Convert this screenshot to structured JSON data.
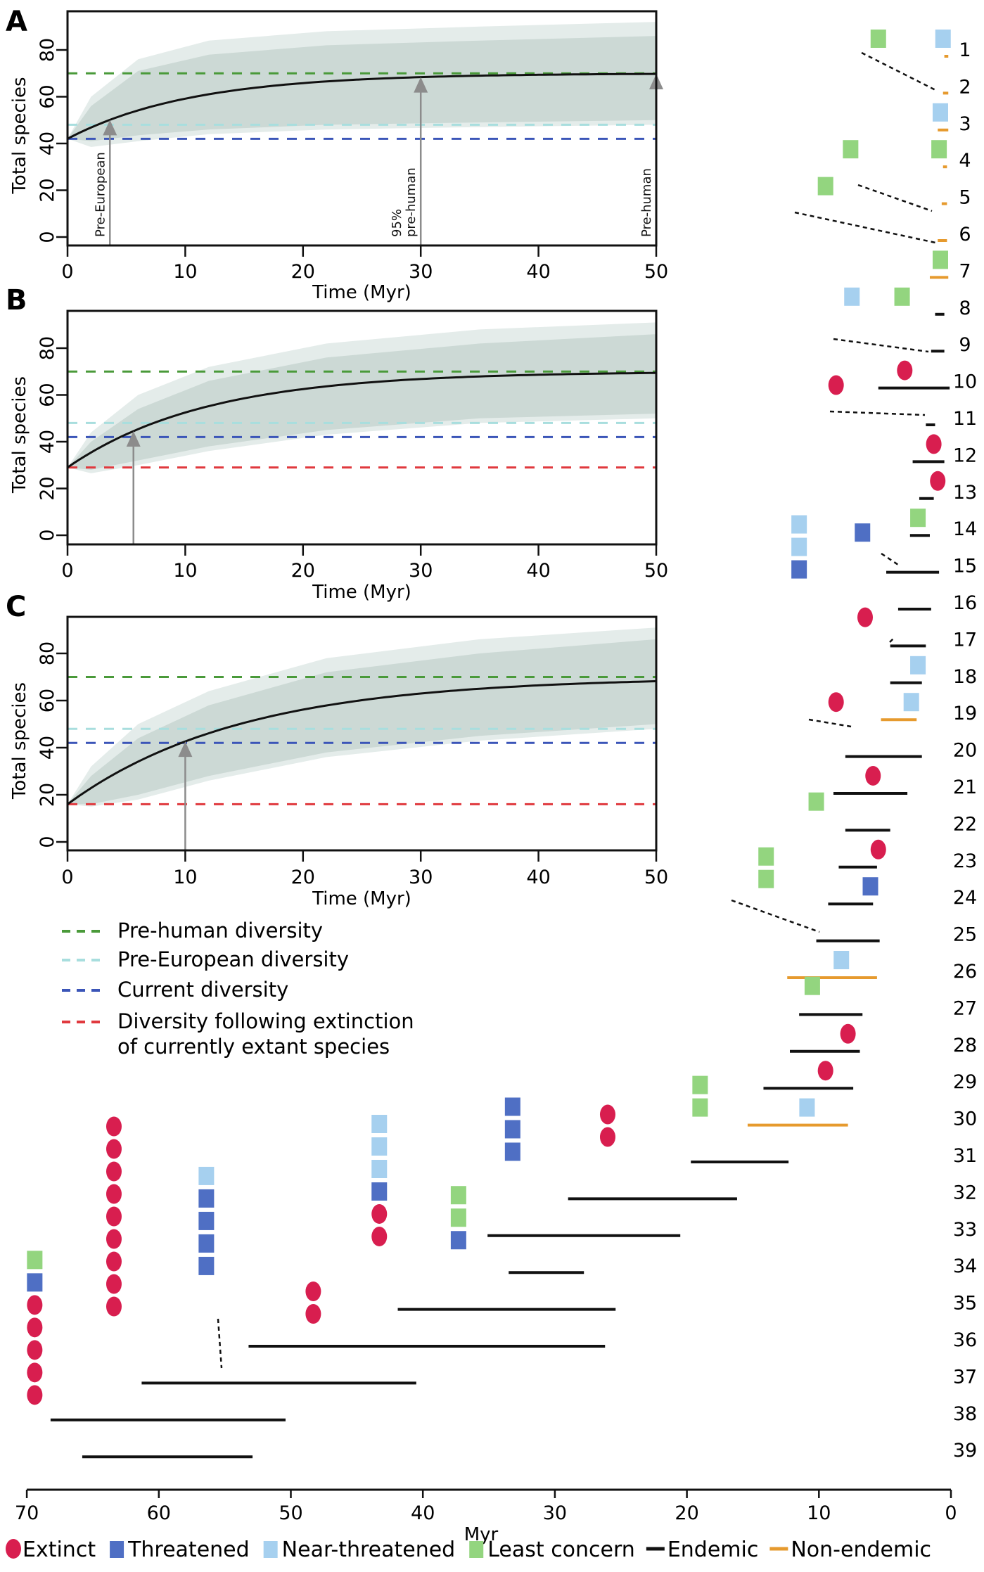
{
  "chart_data": [
    {
      "type": "line",
      "panel": "A",
      "xlabel": "Time (Myr)",
      "ylabel": "Total species",
      "xlim": [
        0,
        50
      ],
      "ylim": [
        -4,
        96
      ],
      "xticks": [
        0,
        10,
        20,
        30,
        40,
        50
      ],
      "yticks": [
        0,
        20,
        40,
        60,
        80
      ],
      "start": 42,
      "asymptote": 70,
      "rate": 0.095,
      "band_inner": {
        "low": [
          42,
          41,
          43.5,
          46,
          48,
          49,
          50
        ],
        "high": [
          42,
          56,
          71,
          78,
          82,
          84,
          86
        ],
        "x": [
          0,
          2,
          6,
          12,
          22,
          35,
          50
        ]
      },
      "band_outer": {
        "low": [
          42,
          38.5,
          41,
          44,
          46,
          47,
          48
        ],
        "high": [
          42,
          60,
          76,
          84,
          88,
          90,
          92
        ],
        "x": [
          0,
          2,
          6,
          12,
          22,
          35,
          50
        ]
      },
      "hlines": [
        {
          "name": "Pre-human diversity",
          "value": 70,
          "color": "#4a9a3a"
        },
        {
          "name": "Pre-European diversity",
          "value": 48,
          "color": "#a8dede"
        },
        {
          "name": "Current diversity",
          "value": 42,
          "color": "#3b55b8"
        }
      ],
      "arrows": [
        {
          "x": 3.6,
          "label": "Pre-European"
        },
        {
          "x": 30,
          "label": "95%\npre-human"
        },
        {
          "x": 50,
          "label": "Pre-human"
        }
      ]
    },
    {
      "type": "line",
      "panel": "B",
      "xlabel": "Time (Myr)",
      "ylabel": "Total species",
      "xlim": [
        0,
        50
      ],
      "ylim": [
        -4,
        96
      ],
      "xticks": [
        0,
        10,
        20,
        30,
        40,
        50
      ],
      "yticks": [
        0,
        20,
        40,
        60,
        80
      ],
      "start": 29,
      "asymptote": 70,
      "rate": 0.085,
      "band_inner": {
        "low": [
          29,
          28,
          32,
          38,
          45,
          50,
          52
        ],
        "high": [
          29,
          40,
          54,
          66,
          76,
          82,
          86
        ],
        "x": [
          0,
          2,
          6,
          12,
          22,
          35,
          50
        ]
      },
      "band_outer": {
        "low": [
          29,
          26.5,
          30,
          36,
          43,
          48,
          50
        ],
        "high": [
          29,
          44,
          60,
          72,
          82,
          88,
          91
        ],
        "x": [
          0,
          2,
          6,
          12,
          22,
          35,
          50
        ]
      },
      "hlines": [
        {
          "name": "Pre-human diversity",
          "value": 70,
          "color": "#4a9a3a"
        },
        {
          "name": "Pre-European diversity",
          "value": 48,
          "color": "#a8dede"
        },
        {
          "name": "Current diversity",
          "value": 42,
          "color": "#3b55b8"
        },
        {
          "name": "Diversity following extinction of currently extant species",
          "value": 29,
          "color": "#e0393e"
        }
      ],
      "arrows": [
        {
          "x": 5.6,
          "label": ""
        }
      ]
    },
    {
      "type": "line",
      "panel": "C",
      "xlabel": "Time (Myr)",
      "ylabel": "Total species",
      "xlim": [
        0,
        50
      ],
      "ylim": [
        -4,
        96
      ],
      "xticks": [
        0,
        10,
        20,
        30,
        40,
        50
      ],
      "yticks": [
        0,
        20,
        40,
        60,
        80
      ],
      "start": 16,
      "asymptote": 70,
      "rate": 0.068,
      "band_inner": {
        "low": [
          16,
          16,
          20,
          28,
          38,
          45,
          50
        ],
        "high": [
          16,
          28,
          44,
          58,
          72,
          80,
          86
        ],
        "x": [
          0,
          2,
          6,
          12,
          22,
          35,
          50
        ]
      },
      "band_outer": {
        "low": [
          16,
          15,
          18,
          26,
          36,
          43,
          48
        ],
        "high": [
          16,
          32,
          50,
          64,
          78,
          86,
          91
        ],
        "x": [
          0,
          2,
          6,
          12,
          22,
          35,
          50
        ]
      },
      "hlines": [
        {
          "name": "Pre-human diversity",
          "value": 70,
          "color": "#4a9a3a"
        },
        {
          "name": "Pre-European diversity",
          "value": 48,
          "color": "#a8dede"
        },
        {
          "name": "Current diversity",
          "value": 42,
          "color": "#3b55b8"
        },
        {
          "name": "Diversity following extinction of currently extant species",
          "value": 16,
          "color": "#e0393e"
        }
      ],
      "arrows": [
        {
          "x": 10,
          "label": ""
        }
      ]
    },
    {
      "type": "tree",
      "xlabel": "Myr",
      "xlim": [
        70,
        0
      ],
      "xticks": [
        70,
        60,
        50,
        40,
        30,
        20,
        10,
        0
      ],
      "rows": [
        {
          "n": "1",
          "start": 0.5,
          "end": 0.2,
          "endemic": false
        },
        {
          "n": "2",
          "start": 0.6,
          "end": 0.2,
          "endemic": false
        },
        {
          "n": "3",
          "start": 1.0,
          "end": 0.2,
          "endemic": false
        },
        {
          "n": "4",
          "start": 0.6,
          "end": 0.3,
          "endemic": false
        },
        {
          "n": "5",
          "start": 0.7,
          "end": 0.3,
          "endemic": false
        },
        {
          "n": "6",
          "start": 1.0,
          "end": 0.3,
          "endemic": false
        },
        {
          "n": "7",
          "start": 1.6,
          "end": 0.2,
          "endemic": false
        },
        {
          "n": "8",
          "start": 1.2,
          "end": 0.5,
          "endemic": true
        },
        {
          "n": "9",
          "start": 1.5,
          "end": 0.5,
          "endemic": true
        },
        {
          "n": "10",
          "start": 5.5,
          "end": 0.1,
          "endemic": true
        },
        {
          "n": "11",
          "start": 1.9,
          "end": 1.2,
          "endemic": true
        },
        {
          "n": "12",
          "start": 2.9,
          "end": 0.5,
          "endemic": true
        },
        {
          "n": "13",
          "start": 2.4,
          "end": 1.3,
          "endemic": true
        },
        {
          "n": "14",
          "start": 3.1,
          "end": 1.6,
          "endemic": true
        },
        {
          "n": "15",
          "start": 4.9,
          "end": 0.9,
          "endemic": true
        },
        {
          "n": "16",
          "start": 4.0,
          "end": 1.5,
          "endemic": true
        },
        {
          "n": "17",
          "start": 4.6,
          "end": 1.9,
          "endemic": true
        },
        {
          "n": "18",
          "start": 4.6,
          "end": 2.2,
          "endemic": true
        },
        {
          "n": "19",
          "start": 5.3,
          "end": 2.6,
          "endemic": false
        },
        {
          "n": "20",
          "start": 8.0,
          "end": 2.2,
          "endemic": true
        },
        {
          "n": "21",
          "start": 8.9,
          "end": 3.3,
          "endemic": true
        },
        {
          "n": "22",
          "start": 8.0,
          "end": 4.6,
          "endemic": true
        },
        {
          "n": "23",
          "start": 8.5,
          "end": 5.6,
          "endemic": true
        },
        {
          "n": "24",
          "start": 9.3,
          "end": 5.9,
          "endemic": true
        },
        {
          "n": "25",
          "start": 10.2,
          "end": 5.4,
          "endemic": true
        },
        {
          "n": "26",
          "start": 12.4,
          "end": 5.6,
          "endemic": false
        },
        {
          "n": "27",
          "start": 11.5,
          "end": 6.7,
          "endemic": true
        },
        {
          "n": "28",
          "start": 12.2,
          "end": 6.9,
          "endemic": true
        },
        {
          "n": "29",
          "start": 14.2,
          "end": 7.4,
          "endemic": true
        },
        {
          "n": "30",
          "start": 15.4,
          "end": 7.8,
          "endemic": false
        },
        {
          "n": "31",
          "start": 19.7,
          "end": 12.3,
          "endemic": true
        },
        {
          "n": "32",
          "start": 29.0,
          "end": 16.2,
          "endemic": true
        },
        {
          "n": "33",
          "start": 35.1,
          "end": 20.5,
          "endemic": true
        },
        {
          "n": "34",
          "start": 33.5,
          "end": 27.8,
          "endemic": true
        },
        {
          "n": "35",
          "start": 41.9,
          "end": 25.4,
          "endemic": true
        },
        {
          "n": "36",
          "start": 53.2,
          "end": 26.2,
          "endemic": true
        },
        {
          "n": "37",
          "start": 61.3,
          "end": 40.5,
          "endemic": true
        },
        {
          "n": "38",
          "start": 68.2,
          "end": 50.4,
          "endemic": true
        },
        {
          "n": "39",
          "start": 65.8,
          "end": 52.9,
          "endemic": true
        }
      ],
      "marker_groups": [
        {
          "myr": 0.6,
          "row": 1,
          "statuses": [
            "near-threatened"
          ]
        },
        {
          "myr": 5.5,
          "row": 1,
          "statuses": [
            "least-concern"
          ]
        },
        {
          "myr": 0.8,
          "row": 3,
          "statuses": [
            "near-threatened"
          ]
        },
        {
          "myr": 0.9,
          "row": 4,
          "statuses": [
            "least-concern"
          ]
        },
        {
          "myr": 7.6,
          "row": 4,
          "statuses": [
            "least-concern"
          ]
        },
        {
          "myr": 9.5,
          "row": 5,
          "statuses": [
            "least-concern"
          ]
        },
        {
          "myr": 0.8,
          "row": 7,
          "statuses": [
            "least-concern"
          ]
        },
        {
          "myr": 3.7,
          "row": 8,
          "statuses": [
            "least-concern"
          ]
        },
        {
          "myr": 7.5,
          "row": 8,
          "statuses": [
            "near-threatened"
          ]
        },
        {
          "myr": 3.5,
          "row": 10,
          "statuses": [
            "extinct"
          ]
        },
        {
          "myr": 8.7,
          "row": 10.4,
          "statuses": [
            "extinct"
          ]
        },
        {
          "myr": 1.3,
          "row": 12,
          "statuses": [
            "extinct"
          ]
        },
        {
          "myr": 1.0,
          "row": 13,
          "statuses": [
            "extinct"
          ]
        },
        {
          "myr": 2.5,
          "row": 14,
          "statuses": [
            "least-concern"
          ]
        },
        {
          "myr": 6.7,
          "row": 14.4,
          "statuses": [
            "threatened"
          ]
        },
        {
          "myr": 11.5,
          "row": 15.4,
          "statuses": [
            "near-threatened",
            "near-threatened",
            "threatened"
          ]
        },
        {
          "myr": 6.5,
          "row": 16.7,
          "statuses": [
            "extinct"
          ]
        },
        {
          "myr": 2.5,
          "row": 18,
          "statuses": [
            "near-threatened"
          ]
        },
        {
          "myr": 3.0,
          "row": 19,
          "statuses": [
            "near-threatened"
          ]
        },
        {
          "myr": 8.7,
          "row": 19,
          "statuses": [
            "extinct"
          ]
        },
        {
          "myr": 5.9,
          "row": 21,
          "statuses": [
            "extinct"
          ]
        },
        {
          "myr": 10.2,
          "row": 21.7,
          "statuses": [
            "least-concern"
          ]
        },
        {
          "myr": 5.5,
          "row": 23,
          "statuses": [
            "extinct"
          ]
        },
        {
          "myr": 6.1,
          "row": 24,
          "statuses": [
            "threatened"
          ]
        },
        {
          "myr": 14.0,
          "row": 23.8,
          "statuses": [
            "least-concern",
            "least-concern"
          ]
        },
        {
          "myr": 8.3,
          "row": 26,
          "statuses": [
            "near-threatened"
          ]
        },
        {
          "myr": 10.5,
          "row": 26.7,
          "statuses": [
            "least-concern"
          ]
        },
        {
          "myr": 7.8,
          "row": 28,
          "statuses": [
            "extinct"
          ]
        },
        {
          "myr": 9.5,
          "row": 29,
          "statuses": [
            "extinct"
          ]
        },
        {
          "myr": 10.9,
          "row": 30,
          "statuses": [
            "near-threatened"
          ]
        },
        {
          "myr": 19.0,
          "row": 30,
          "statuses": [
            "least-concern",
            "least-concern"
          ]
        },
        {
          "myr": 26.0,
          "row": 30.8,
          "statuses": [
            "extinct",
            "extinct"
          ]
        },
        {
          "myr": 33.2,
          "row": 31.2,
          "statuses": [
            "threatened",
            "threatened",
            "threatened"
          ]
        },
        {
          "myr": 37.3,
          "row": 33.6,
          "statuses": [
            "least-concern",
            "least-concern",
            "threatened"
          ]
        },
        {
          "myr": 43.3,
          "row": 33.5,
          "statuses": [
            "near-threatened",
            "near-threatened",
            "near-threatened",
            "threatened",
            "extinct",
            "extinct"
          ]
        },
        {
          "myr": 48.3,
          "row": 35.6,
          "statuses": [
            "extinct",
            "extinct"
          ]
        },
        {
          "myr": 56.4,
          "row": 34.3,
          "statuses": [
            "near-threatened",
            "threatened",
            "threatened",
            "threatened",
            "threatened"
          ]
        },
        {
          "myr": 63.4,
          "row": 35.4,
          "statuses": [
            "extinct",
            "extinct",
            "extinct",
            "extinct",
            "extinct",
            "extinct",
            "extinct",
            "extinct",
            "extinct"
          ]
        },
        {
          "myr": 69.4,
          "row": 37.8,
          "statuses": [
            "least-concern",
            "threatened",
            "extinct",
            "extinct",
            "extinct",
            "extinct",
            "extinct"
          ]
        }
      ],
      "legend": [
        {
          "status": "extinct",
          "label": "Extinct"
        },
        {
          "status": "threatened",
          "label": "Threatened"
        },
        {
          "status": "near-threatened",
          "label": "Near-threatened"
        },
        {
          "status": "least-concern",
          "label": "Least concern"
        },
        {
          "status": "endemic",
          "label": "Endemic"
        },
        {
          "status": "non-endemic",
          "label": "Non-endemic"
        }
      ]
    }
  ],
  "panel_letters": [
    "A",
    "B",
    "C"
  ],
  "diversity_legend": [
    {
      "label": "Pre-human diversity",
      "color": "#4a9a3a"
    },
    {
      "label": "Pre-European diversity",
      "color": "#a8dede"
    },
    {
      "label": "Current diversity",
      "color": "#3b55b8"
    },
    {
      "label": "Diversity following extinction",
      "label2": "of currently extant species",
      "color": "#e0393e"
    }
  ],
  "colors": {
    "extinct": "#d81e4f",
    "threatened": "#4f6fc4",
    "near-threatened": "#a6d0ef",
    "least-concern": "#93d57f",
    "endemic": "#111111",
    "non-endemic": "#e69a2e",
    "band_outer": "#e4ecea",
    "band_inner": "#ccd9d5",
    "arrow": "#8c8c8c"
  }
}
